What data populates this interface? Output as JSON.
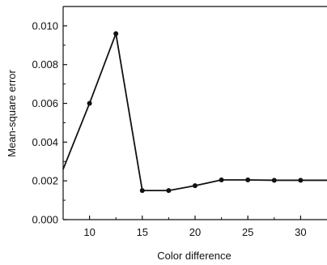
{
  "chart_data": {
    "type": "line",
    "title": "",
    "xlabel": "Color difference",
    "ylabel": "Mean-square error",
    "xlim": [
      7.5,
      32.5
    ],
    "ylim": [
      0.0,
      0.011
    ],
    "xticks": [
      10,
      15,
      20,
      25,
      30
    ],
    "xtick_labels": [
      "10",
      "15",
      "20",
      "25",
      "30"
    ],
    "yticks": [
      0.0,
      0.002,
      0.004,
      0.006,
      0.008,
      0.01
    ],
    "ytick_labels": [
      "0.000",
      "0.002",
      "0.004",
      "0.006",
      "0.008",
      "0.010"
    ],
    "grid": false,
    "legend": "none",
    "line_color": "#111111",
    "series": [
      {
        "x": [
          7.5,
          10,
          12.5,
          15,
          17.5,
          20,
          22.5,
          25,
          27.5,
          30,
          32.5
        ],
        "y": [
          0.0026,
          0.006,
          0.0096,
          0.0015,
          0.0015,
          0.00175,
          0.00205,
          0.00205,
          0.00203,
          0.00203,
          0.00203
        ]
      }
    ]
  }
}
